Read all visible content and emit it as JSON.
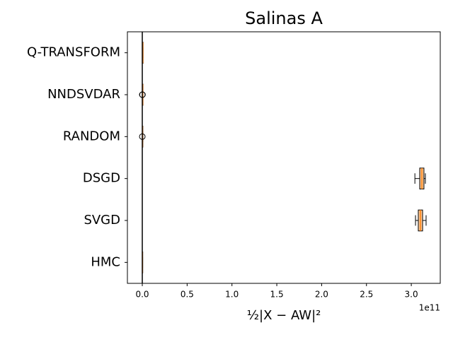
{
  "chart_data": {
    "type": "boxplot",
    "orientation": "horizontal",
    "title": "Salinas A",
    "xlabel": "½|X − AW|²",
    "offset_text": "1e11",
    "categories": [
      "HMC",
      "SVGD",
      "DSGD",
      "RANDOM",
      "NNDSVDAR",
      "Q-TRANSFORM"
    ],
    "boxes": [
      {
        "min": 0.0,
        "q1": 0.001,
        "median": 0.002,
        "q3": 0.003,
        "max": 0.004,
        "fliers": []
      },
      {
        "min": 3.047,
        "q1": 3.078,
        "median": 3.102,
        "q3": 3.126,
        "max": 3.165,
        "fliers": []
      },
      {
        "min": 3.04,
        "q1": 3.094,
        "median": 3.118,
        "q3": 3.141,
        "max": 3.157,
        "fliers": []
      },
      {
        "min": 0.001,
        "q1": 0.002,
        "median": 0.003,
        "q3": 0.004,
        "max": 0.005,
        "fliers": [
          0.0
        ]
      },
      {
        "min": 0.003,
        "q1": 0.004,
        "median": 0.005,
        "q3": 0.006,
        "max": 0.007,
        "fliers": [
          0.0,
          0.002
        ]
      },
      {
        "min": 0.004,
        "q1": 0.005,
        "median": 0.006,
        "q3": 0.007,
        "max": 0.008,
        "fliers": []
      }
    ],
    "box_color": "#fdc998",
    "median_color": "#ff7f0e",
    "vline": 0,
    "xlim": [
      -0.166,
      3.323
    ],
    "xticks": [
      {
        "value": 0,
        "label": "0.0"
      },
      0.5,
      {
        "value": 1,
        "label": "1.0"
      },
      1.5,
      {
        "value": 2,
        "label": "2.0"
      },
      2.5,
      {
        "value": 3,
        "label": "3.0"
      }
    ]
  }
}
